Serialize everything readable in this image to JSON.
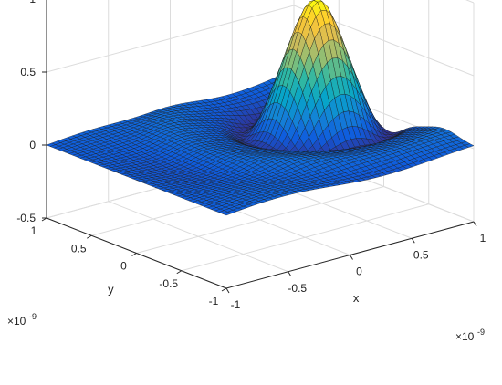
{
  "chart_data": {
    "type": "surface",
    "title": "",
    "xlabel": "x",
    "ylabel": "y",
    "zlabel": "",
    "xlim": [
      -1e-09,
      1e-09
    ],
    "ylim": [
      -1e-09,
      1e-09
    ],
    "zlim": [
      -0.5,
      1
    ],
    "x_ticks": [
      "-1",
      "-0.5",
      "0",
      "0.5",
      "1"
    ],
    "y_ticks": [
      "-1",
      "-0.5",
      "0",
      "0.5",
      "1"
    ],
    "z_ticks": [
      "-0.5",
      "0",
      "0.5",
      "1"
    ],
    "x_multiplier": "×10",
    "x_multiplier_exp": "-9",
    "y_multiplier": "×10",
    "y_multiplier_exp": "-9",
    "colormap": "parula",
    "colormap_stops": [
      "#352a87",
      "#0f5cdd",
      "#1481d6",
      "#06a4ca",
      "#2eb7a4",
      "#87bf77",
      "#d1bb59",
      "#fec832",
      "#f9fb0e"
    ],
    "edge_color": "#1a1a1a",
    "grid": true,
    "grid_size": 48,
    "surface_peak": {
      "x": 6e-10,
      "y": 2e-10,
      "z": 0.82
    },
    "surface_min": -0.45
  }
}
